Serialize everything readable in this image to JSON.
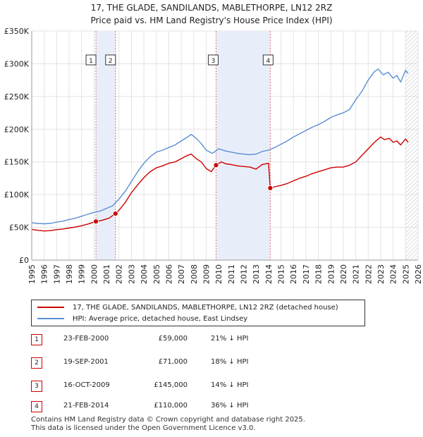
{
  "title": {
    "line1": "17, THE GLADE, SANDILANDS, MABLETHORPE, LN12 2RZ",
    "line2": "Price paid vs. HM Land Registry's House Price Index (HPI)"
  },
  "legend": {
    "property_label": "17, THE GLADE, SANDILANDS, MABLETHORPE, LN12 2RZ (detached house)",
    "hpi_label": "HPI: Average price, detached house, East Lindsey"
  },
  "colors": {
    "property": "#cc0000",
    "hpi": "#5b8fd4",
    "shade": "#e8eef9",
    "marker": "#cc0000"
  },
  "sales": [
    {
      "num": "1",
      "date": "23-FEB-2000",
      "price": "£59,000",
      "hpi_diff": "21% ↓ HPI"
    },
    {
      "num": "2",
      "date": "19-SEP-2001",
      "price": "£71,000",
      "hpi_diff": "18% ↓ HPI"
    },
    {
      "num": "3",
      "date": "16-OCT-2009",
      "price": "£145,000",
      "hpi_diff": "14% ↓ HPI"
    },
    {
      "num": "4",
      "date": "21-FEB-2014",
      "price": "£110,000",
      "hpi_diff": "36% ↓ HPI"
    }
  ],
  "footer": {
    "line1": "Contains HM Land Registry data © Crown copyright and database right 2025.",
    "line2": "This data is licensed under the Open Government Licence v3.0."
  },
  "chart_data": {
    "type": "line",
    "title": "17, THE GLADE, SANDILANDS, MABLETHORPE, LN12 2RZ — Price paid vs. HM Land Registry's House Price Index (HPI)",
    "xlabel": "",
    "ylabel": "",
    "xlim": [
      1995,
      2026
    ],
    "ylim": [
      0,
      350000
    ],
    "x_ticks": [
      1995,
      1996,
      1997,
      1998,
      1999,
      2000,
      2001,
      2002,
      2003,
      2004,
      2005,
      2006,
      2007,
      2008,
      2009,
      2010,
      2011,
      2012,
      2013,
      2014,
      2015,
      2016,
      2017,
      2018,
      2019,
      2020,
      2021,
      2022,
      2023,
      2024,
      2025,
      2026
    ],
    "y_ticks": [
      {
        "value": 0,
        "label": "£0"
      },
      {
        "value": 50000,
        "label": "£50K"
      },
      {
        "value": 100000,
        "label": "£100K"
      },
      {
        "value": 150000,
        "label": "£150K"
      },
      {
        "value": 200000,
        "label": "£200K"
      },
      {
        "value": 250000,
        "label": "£250K"
      },
      {
        "value": 300000,
        "label": "£300K"
      },
      {
        "value": 350000,
        "label": "£350K"
      }
    ],
    "grid": true,
    "forecast_start": 2025.0,
    "shaded_periods": [
      [
        2000.15,
        2001.72
      ],
      [
        2009.79,
        2014.14
      ]
    ],
    "sale_points": [
      {
        "label": "1",
        "x": 2000.15,
        "y": 59000
      },
      {
        "label": "2",
        "x": 2001.72,
        "y": 71000
      },
      {
        "label": "3",
        "x": 2009.79,
        "y": 145000
      },
      {
        "label": "4",
        "x": 2014.14,
        "y": 110000
      }
    ],
    "series": [
      {
        "name": "17, THE GLADE, SANDILANDS, MABLETHORPE, LN12 2RZ (detached house)",
        "points": [
          [
            1995.0,
            47000
          ],
          [
            1995.5,
            45500
          ],
          [
            1996.0,
            44500
          ],
          [
            1996.5,
            45000
          ],
          [
            1997.0,
            46500
          ],
          [
            1997.5,
            47500
          ],
          [
            1998.0,
            49000
          ],
          [
            1998.5,
            50500
          ],
          [
            1999.0,
            52500
          ],
          [
            1999.5,
            55000
          ],
          [
            2000.15,
            59000
          ],
          [
            2000.6,
            60500
          ],
          [
            2001.2,
            64000
          ],
          [
            2001.72,
            71000
          ],
          [
            2002.0,
            76000
          ],
          [
            2002.5,
            88000
          ],
          [
            2003.0,
            103000
          ],
          [
            2003.5,
            115000
          ],
          [
            2004.0,
            126000
          ],
          [
            2004.5,
            135000
          ],
          [
            2005.0,
            141000
          ],
          [
            2005.5,
            144000
          ],
          [
            2006.0,
            148000
          ],
          [
            2006.5,
            150000
          ],
          [
            2007.0,
            155000
          ],
          [
            2007.5,
            160000
          ],
          [
            2007.8,
            162000
          ],
          [
            2008.2,
            155000
          ],
          [
            2008.6,
            150000
          ],
          [
            2009.0,
            140000
          ],
          [
            2009.4,
            135000
          ],
          [
            2009.79,
            145000
          ],
          [
            2010.2,
            150000
          ],
          [
            2010.6,
            147000
          ],
          [
            2011.0,
            146000
          ],
          [
            2011.5,
            144000
          ],
          [
            2012.0,
            143000
          ],
          [
            2012.5,
            142000
          ],
          [
            2013.0,
            139000
          ],
          [
            2013.5,
            146000
          ],
          [
            2014.0,
            148000
          ],
          [
            2014.14,
            110000
          ],
          [
            2014.5,
            112000
          ],
          [
            2015.0,
            114000
          ],
          [
            2015.5,
            117000
          ],
          [
            2016.0,
            121000
          ],
          [
            2016.5,
            125000
          ],
          [
            2017.0,
            128000
          ],
          [
            2017.5,
            132000
          ],
          [
            2018.0,
            135000
          ],
          [
            2018.5,
            138000
          ],
          [
            2019.0,
            141000
          ],
          [
            2019.5,
            142000
          ],
          [
            2020.0,
            142000
          ],
          [
            2020.5,
            145000
          ],
          [
            2021.0,
            150000
          ],
          [
            2021.5,
            160000
          ],
          [
            2022.0,
            170000
          ],
          [
            2022.5,
            180000
          ],
          [
            2023.0,
            188000
          ],
          [
            2023.3,
            184000
          ],
          [
            2023.7,
            186000
          ],
          [
            2024.0,
            180000
          ],
          [
            2024.3,
            182000
          ],
          [
            2024.6,
            176000
          ],
          [
            2025.0,
            185000
          ],
          [
            2025.2,
            180000
          ]
        ]
      },
      {
        "name": "HPI: Average price, detached house, East Lindsey",
        "points": [
          [
            1995.0,
            57000
          ],
          [
            1995.5,
            56000
          ],
          [
            1996.0,
            55500
          ],
          [
            1996.5,
            56000
          ],
          [
            1997.0,
            58000
          ],
          [
            1997.5,
            59500
          ],
          [
            1998.0,
            62000
          ],
          [
            1998.5,
            64000
          ],
          [
            1999.0,
            67000
          ],
          [
            1999.5,
            70000
          ],
          [
            2000.0,
            73000
          ],
          [
            2000.5,
            75000
          ],
          [
            2001.0,
            79000
          ],
          [
            2001.5,
            83000
          ],
          [
            2002.0,
            93000
          ],
          [
            2002.5,
            105000
          ],
          [
            2003.0,
            120000
          ],
          [
            2003.5,
            135000
          ],
          [
            2004.0,
            148000
          ],
          [
            2004.5,
            158000
          ],
          [
            2005.0,
            165000
          ],
          [
            2005.5,
            168000
          ],
          [
            2006.0,
            172000
          ],
          [
            2006.5,
            176000
          ],
          [
            2007.0,
            182000
          ],
          [
            2007.5,
            188000
          ],
          [
            2007.8,
            192000
          ],
          [
            2008.2,
            186000
          ],
          [
            2008.6,
            178000
          ],
          [
            2009.0,
            168000
          ],
          [
            2009.5,
            163000
          ],
          [
            2010.0,
            170000
          ],
          [
            2010.5,
            167000
          ],
          [
            2011.0,
            165000
          ],
          [
            2011.5,
            163000
          ],
          [
            2012.0,
            162000
          ],
          [
            2012.5,
            161000
          ],
          [
            2013.0,
            162000
          ],
          [
            2013.5,
            166000
          ],
          [
            2014.0,
            168000
          ],
          [
            2014.5,
            172000
          ],
          [
            2015.0,
            177000
          ],
          [
            2015.5,
            182000
          ],
          [
            2016.0,
            188000
          ],
          [
            2016.5,
            193000
          ],
          [
            2017.0,
            198000
          ],
          [
            2017.5,
            203000
          ],
          [
            2018.0,
            207000
          ],
          [
            2018.5,
            212000
          ],
          [
            2019.0,
            218000
          ],
          [
            2019.5,
            222000
          ],
          [
            2020.0,
            225000
          ],
          [
            2020.5,
            230000
          ],
          [
            2021.0,
            245000
          ],
          [
            2021.5,
            258000
          ],
          [
            2022.0,
            275000
          ],
          [
            2022.5,
            288000
          ],
          [
            2022.8,
            292000
          ],
          [
            2023.2,
            283000
          ],
          [
            2023.6,
            287000
          ],
          [
            2024.0,
            278000
          ],
          [
            2024.3,
            282000
          ],
          [
            2024.6,
            272000
          ],
          [
            2025.0,
            290000
          ],
          [
            2025.2,
            285000
          ]
        ]
      }
    ]
  }
}
